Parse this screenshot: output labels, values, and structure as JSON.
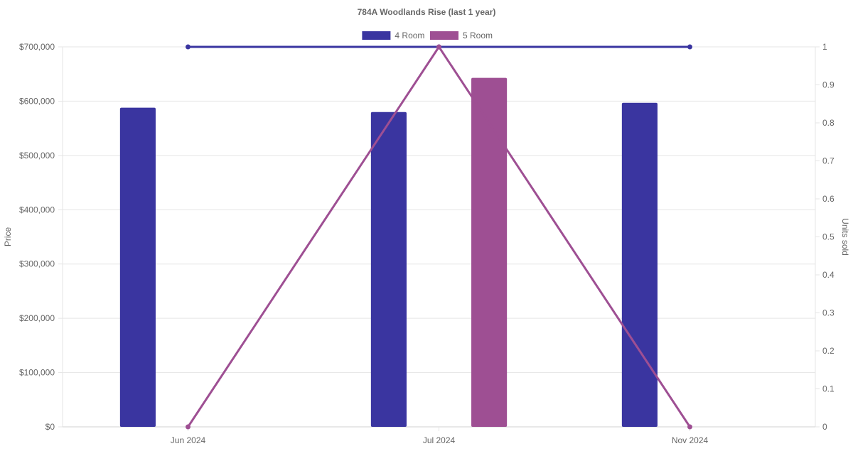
{
  "chart_data": {
    "type": "bar",
    "title": "784A Woodlands Rise (last 1 year)",
    "categories": [
      "Jun 2024",
      "Jul 2024",
      "Nov 2024"
    ],
    "y_left": {
      "label": "Price",
      "range": [
        0,
        700000
      ],
      "ticks": [
        0,
        100000,
        200000,
        300000,
        400000,
        500000,
        600000,
        700000
      ],
      "tick_labels": [
        "$0",
        "$100,000",
        "$200,000",
        "$300,000",
        "$400,000",
        "$500,000",
        "$600,000",
        "$700,000"
      ]
    },
    "y_right": {
      "label": "Units sold",
      "range": [
        0,
        1
      ],
      "ticks": [
        0,
        0.1,
        0.2,
        0.3,
        0.4,
        0.5,
        0.6,
        0.7,
        0.8,
        0.9,
        1
      ],
      "tick_labels": [
        "0",
        "0.1",
        "0.2",
        "0.3",
        "0.4",
        "0.5",
        "0.6",
        "0.7",
        "0.8",
        "0.9",
        "1"
      ]
    },
    "series": [
      {
        "name": "4 Room",
        "color": "#3a35a0",
        "price": [
          588000,
          580000,
          597000
        ],
        "units_sold": [
          1,
          1,
          1
        ]
      },
      {
        "name": "5 Room",
        "color": "#9e4f93",
        "price": [
          null,
          643000,
          null
        ],
        "units_sold": [
          0,
          1,
          0
        ]
      }
    ],
    "legend_position": "top-center",
    "grid": true
  }
}
